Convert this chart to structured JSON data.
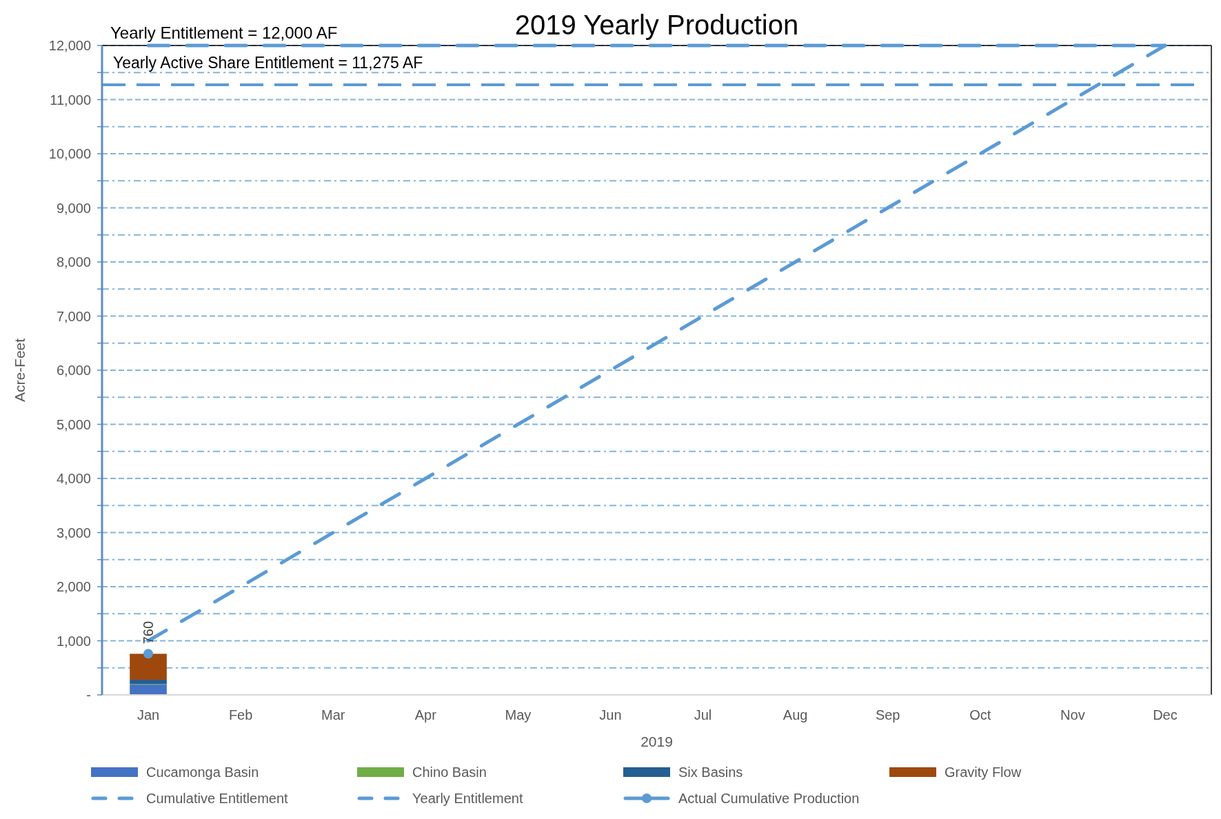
{
  "chart_data": {
    "type": "bar",
    "title": "2019 Yearly Production",
    "xlabel": "2019",
    "ylabel": "Acre-Feet",
    "categories": [
      "Jan",
      "Feb",
      "Mar",
      "Apr",
      "May",
      "Jun",
      "Jul",
      "Aug",
      "Sep",
      "Oct",
      "Nov",
      "Dec"
    ],
    "series": [
      {
        "name": "Cucamonga Basin",
        "color": "#4472c4",
        "values": [
          190,
          null,
          null,
          null,
          null,
          null,
          null,
          null,
          null,
          null,
          null,
          null
        ]
      },
      {
        "name": "Chino Basin",
        "color": "#70ad47",
        "values": [
          10,
          null,
          null,
          null,
          null,
          null,
          null,
          null,
          null,
          null,
          null,
          null
        ]
      },
      {
        "name": "Six Basins",
        "color": "#255e91",
        "values": [
          80,
          null,
          null,
          null,
          null,
          null,
          null,
          null,
          null,
          null,
          null,
          null
        ]
      },
      {
        "name": "Gravity Flow",
        "color": "#9e480e",
        "values": [
          480,
          null,
          null,
          null,
          null,
          null,
          null,
          null,
          null,
          null,
          null,
          null
        ]
      },
      {
        "name": "Cumulative Entitlement",
        "type": "line",
        "color": "#5b9bd5",
        "line_style": "dashed",
        "values": [
          1000,
          2000,
          3000,
          4000,
          5000,
          6000,
          7000,
          8000,
          9000,
          10000,
          11000,
          12000
        ]
      },
      {
        "name": "Yearly Entitlement",
        "type": "line",
        "color": "#5b9bd5",
        "line_style": "dashed",
        "values": [
          12000,
          12000,
          12000,
          12000,
          12000,
          12000,
          12000,
          12000,
          12000,
          12000,
          12000,
          12000
        ]
      },
      {
        "name": "Actual Cumulative Production",
        "type": "line",
        "color": "#5b9bd5",
        "marker": "circle",
        "values": [
          760,
          null,
          null,
          null,
          null,
          null,
          null,
          null,
          null,
          null,
          null,
          null
        ],
        "value_labels": [
          "760",
          null,
          null,
          null,
          null,
          null,
          null,
          null,
          null,
          null,
          null,
          null
        ]
      }
    ],
    "stacked": true,
    "ylim": [
      0,
      12000
    ],
    "yticks": [
      {
        "value": 0,
        "label": "-"
      },
      {
        "value": 500,
        "label": null
      },
      {
        "value": 1000,
        "label": "1,000"
      },
      {
        "value": 1500,
        "label": null
      },
      {
        "value": 2000,
        "label": "2,000"
      },
      {
        "value": 2500,
        "label": null
      },
      {
        "value": 3000,
        "label": "3,000"
      },
      {
        "value": 3500,
        "label": null
      },
      {
        "value": 4000,
        "label": "4,000"
      },
      {
        "value": 4500,
        "label": null
      },
      {
        "value": 5000,
        "label": "5,000"
      },
      {
        "value": 5500,
        "label": null
      },
      {
        "value": 6000,
        "label": "6,000"
      },
      {
        "value": 6500,
        "label": null
      },
      {
        "value": 7000,
        "label": "7,000"
      },
      {
        "value": 7500,
        "label": null
      },
      {
        "value": 8000,
        "label": "8,000"
      },
      {
        "value": 8500,
        "label": null
      },
      {
        "value": 9000,
        "label": "9,000"
      },
      {
        "value": 9500,
        "label": null
      },
      {
        "value": 10000,
        "label": "10,000"
      },
      {
        "value": 10500,
        "label": null
      },
      {
        "value": 11000,
        "label": "11,000"
      },
      {
        "value": 11500,
        "label": null
      },
      {
        "value": 12000,
        "label": "12,000"
      }
    ],
    "grid": "y",
    "legend": "bottom",
    "ref_lines": [
      {
        "axis": "y",
        "value": 11275,
        "label": "Yearly Active Share Entitlement = 11,275 AF",
        "color": "#5b9bd5",
        "line_style": "dashed"
      }
    ],
    "annotations": [
      {
        "text": "Yearly Entitlement = 12,000 AF",
        "y": 12000
      }
    ]
  }
}
